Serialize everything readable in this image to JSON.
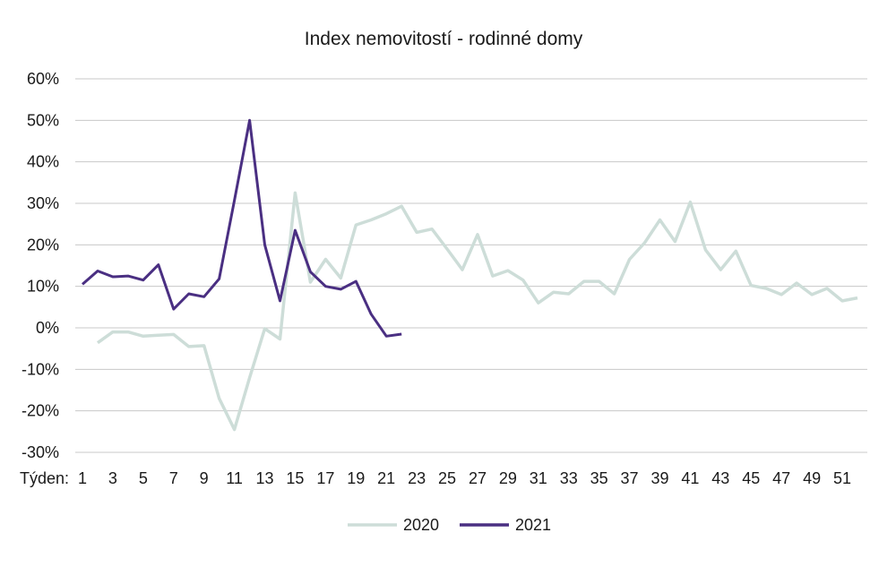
{
  "chart_data": {
    "type": "line",
    "title": "Index nemovitostí - rodinné domy",
    "xlabel": "Týden:",
    "ylabel": "",
    "x_tick_labels": [
      "1",
      "3",
      "5",
      "7",
      "9",
      "11",
      "13",
      "15",
      "17",
      "19",
      "21",
      "23",
      "25",
      "27",
      "29",
      "31",
      "33",
      "35",
      "37",
      "39",
      "41",
      "43",
      "45",
      "47",
      "49",
      "51"
    ],
    "y_tick_labels": [
      "60%",
      "50%",
      "40%",
      "30%",
      "20%",
      "10%",
      "0%",
      "-10%",
      "-20%",
      "-30%"
    ],
    "ylim": [
      -30,
      60
    ],
    "xlim": [
      1,
      52
    ],
    "grid": true,
    "legend_position": "bottom-center",
    "series": [
      {
        "name": "2020",
        "color": "#cdddd8",
        "x": [
          2,
          3,
          4,
          5,
          6,
          7,
          8,
          9,
          10,
          11,
          12,
          13,
          14,
          15,
          16,
          17,
          18,
          19,
          20,
          21,
          22,
          23,
          24,
          25,
          26,
          27,
          28,
          29,
          30,
          31,
          32,
          33,
          34,
          35,
          36,
          37,
          38,
          39,
          40,
          41,
          42,
          43,
          44,
          45,
          46,
          47,
          48,
          49,
          50,
          51,
          52
        ],
        "values": [
          -3.6,
          -1,
          -1,
          -2,
          -1.8,
          -1.6,
          -4.5,
          -4.3,
          -17,
          -24.5,
          -12,
          -0.2,
          -2.7,
          32.5,
          11,
          16.5,
          12,
          24.8,
          26,
          27.5,
          29.3,
          23,
          23.8,
          19,
          14,
          22.5,
          12.5,
          13.8,
          11.5,
          6,
          8.6,
          8.2,
          11.2,
          11.2,
          8.2,
          16.5,
          20.5,
          26,
          20.8,
          30.3,
          18.8,
          14,
          18.5,
          10.2,
          9.5,
          8,
          10.8,
          8,
          9.5,
          6.5,
          7.2
        ]
      },
      {
        "name": "2021",
        "color": "#4a2f82",
        "x": [
          1,
          2,
          3,
          4,
          5,
          6,
          7,
          8,
          9,
          10,
          11,
          12,
          13,
          14,
          15,
          16,
          17,
          18,
          19,
          20,
          21,
          22
        ],
        "values": [
          10.5,
          13.7,
          12.3,
          12.5,
          11.5,
          15.2,
          4.5,
          8.2,
          7.5,
          11.8,
          30.7,
          50,
          20,
          6.5,
          23.5,
          13.5,
          10,
          9.3,
          11.2,
          3.3,
          -2,
          -1.5
        ]
      }
    ]
  }
}
